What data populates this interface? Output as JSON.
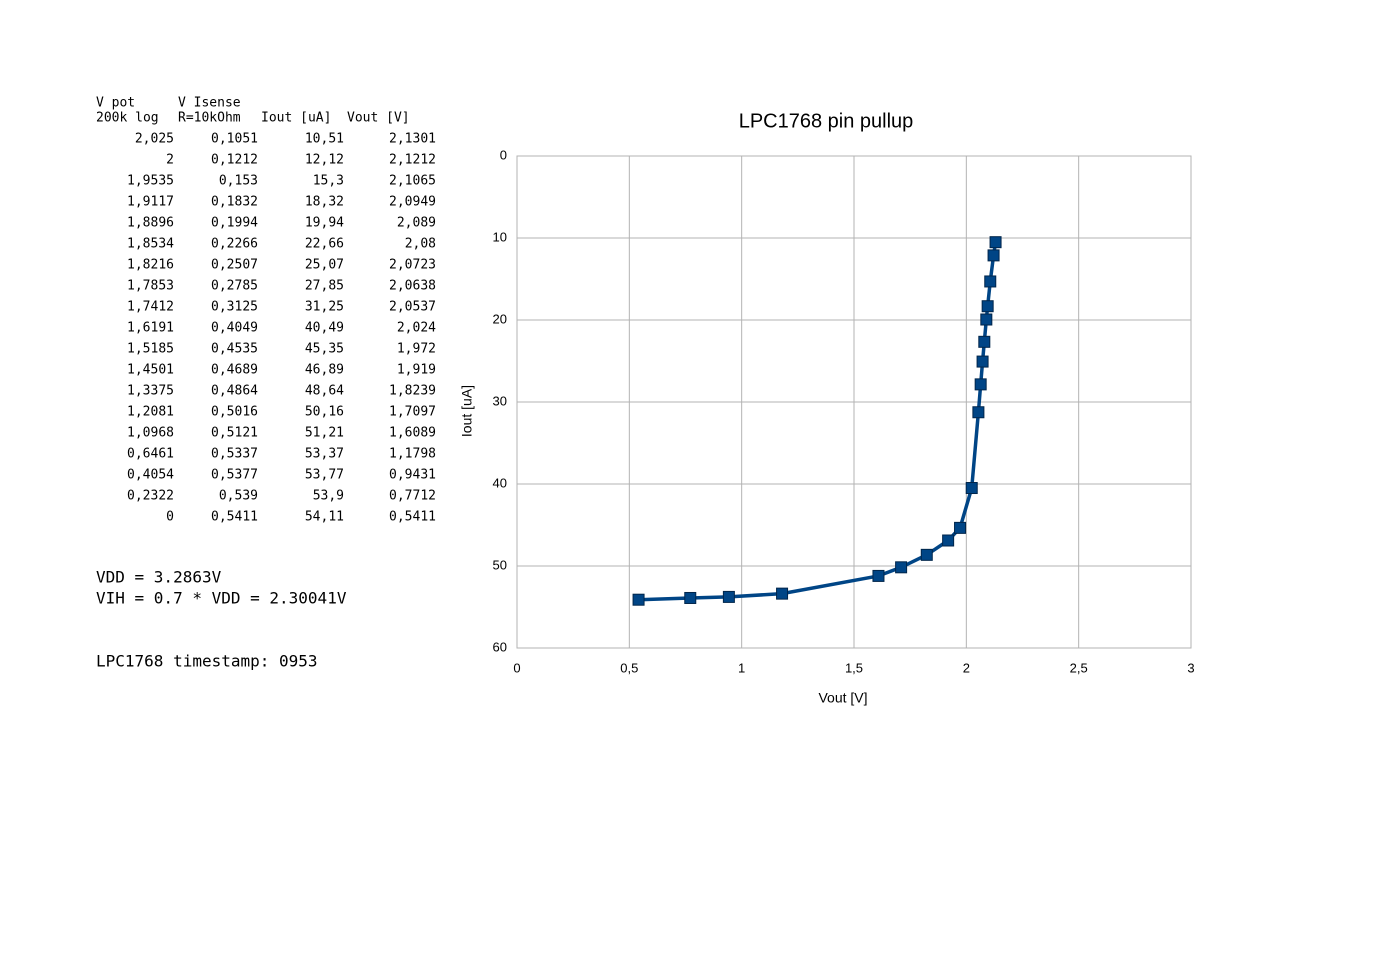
{
  "table": {
    "header_lines": [
      [
        "V pot",
        "V Isense"
      ],
      [
        "200k log",
        "R=10kOhm",
        "Iout [uA]",
        "Vout [V]"
      ]
    ],
    "rows": [
      [
        "2,025",
        "0,1051",
        "10,51",
        "2,1301"
      ],
      [
        "2",
        "0,1212",
        "12,12",
        "2,1212"
      ],
      [
        "1,9535",
        "0,153",
        "15,3",
        "2,1065"
      ],
      [
        "1,9117",
        "0,1832",
        "18,32",
        "2,0949"
      ],
      [
        "1,8896",
        "0,1994",
        "19,94",
        "2,089"
      ],
      [
        "1,8534",
        "0,2266",
        "22,66",
        "2,08"
      ],
      [
        "1,8216",
        "0,2507",
        "25,07",
        "2,0723"
      ],
      [
        "1,7853",
        "0,2785",
        "27,85",
        "2,0638"
      ],
      [
        "1,7412",
        "0,3125",
        "31,25",
        "2,0537"
      ],
      [
        "1,6191",
        "0,4049",
        "40,49",
        "2,024"
      ],
      [
        "1,5185",
        "0,4535",
        "45,35",
        "1,972"
      ],
      [
        "1,4501",
        "0,4689",
        "46,89",
        "1,919"
      ],
      [
        "1,3375",
        "0,4864",
        "48,64",
        "1,8239"
      ],
      [
        "1,2081",
        "0,5016",
        "50,16",
        "1,7097"
      ],
      [
        "1,0968",
        "0,5121",
        "51,21",
        "1,6089"
      ],
      [
        "0,6461",
        "0,5337",
        "53,37",
        "1,1798"
      ],
      [
        "0,4054",
        "0,5377",
        "53,77",
        "0,9431"
      ],
      [
        "0,2322",
        "0,539",
        "53,9",
        "0,7712"
      ],
      [
        "0",
        "0,5411",
        "54,11",
        "0,5411"
      ]
    ]
  },
  "notes": [
    "VDD = 3.2863V",
    "VIH = 0.7 * VDD = 2.30041V",
    "LPC1768 timestamp: 0953"
  ],
  "chart_data": {
    "type": "line",
    "title": "LPC1768 pin pullup",
    "x_label": "Vout [V]",
    "y_label": "Iout [uA]",
    "x": [
      2.1301,
      2.1212,
      2.1065,
      2.0949,
      2.089,
      2.08,
      2.0723,
      2.0638,
      2.0537,
      2.024,
      1.972,
      1.919,
      1.8239,
      1.7097,
      1.6089,
      1.1798,
      0.9431,
      0.7712,
      0.5411
    ],
    "series": [
      {
        "color": "#004586",
        "values": [
          10.51,
          12.12,
          15.3,
          18.32,
          19.94,
          22.66,
          25.07,
          27.85,
          31.25,
          40.49,
          45.35,
          46.89,
          48.64,
          50.16,
          51.21,
          53.37,
          53.77,
          53.9,
          54.11
        ]
      }
    ],
    "xlim": [
      0,
      3
    ],
    "xticks": [
      0,
      {
        "value": 0.5,
        "label": "0,5"
      },
      1,
      {
        "value": 1.5,
        "label": "1,5"
      },
      2,
      {
        "value": 2.5,
        "label": "2,5"
      },
      3
    ],
    "ylim": [
      0,
      60
    ],
    "yticks": [
      0,
      10,
      20,
      30,
      40,
      50,
      60
    ],
    "y_inverted": true,
    "grid": true,
    "marker": "square"
  }
}
